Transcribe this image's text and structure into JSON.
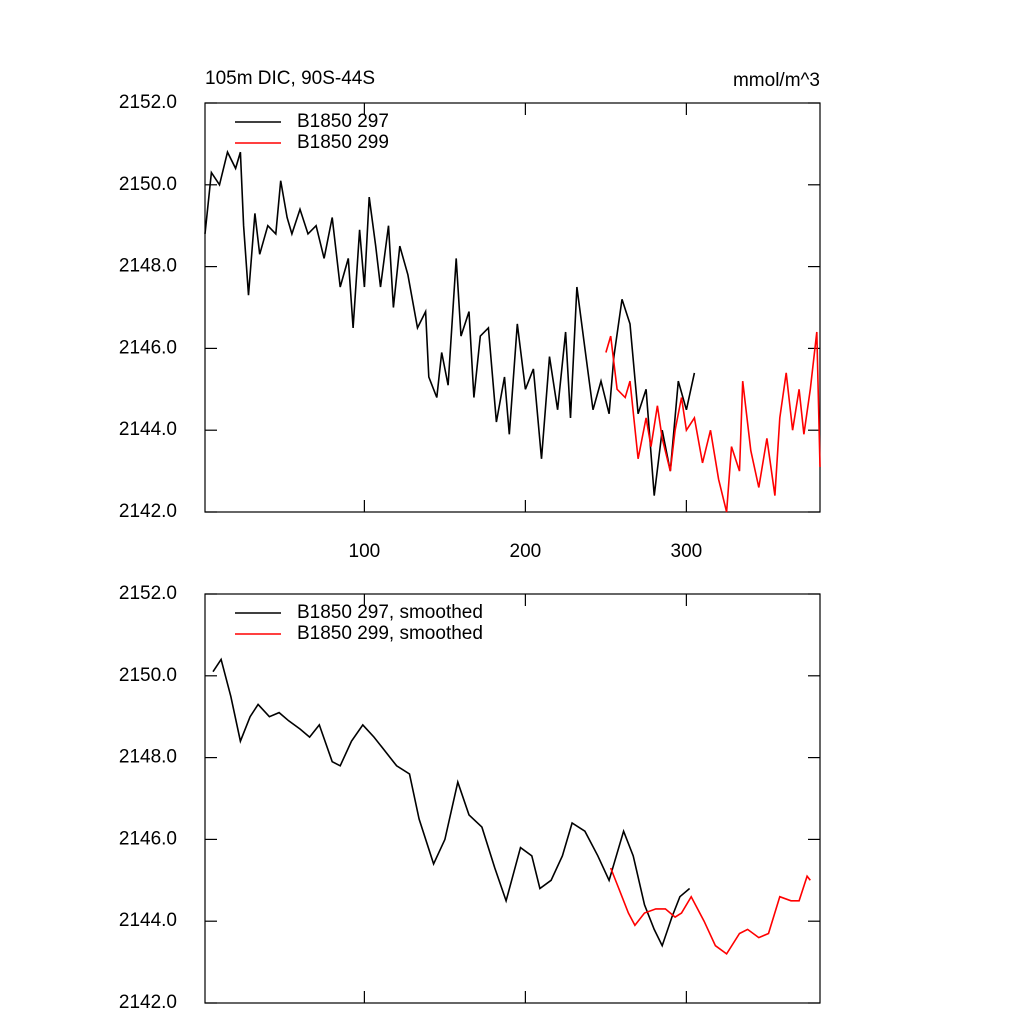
{
  "chart_data": [
    {
      "type": "line",
      "title": "105m DIC, 90S-44S",
      "units_label": "mmol/m^3",
      "xlim": [
        1,
        383
      ],
      "xticks": [
        100,
        200,
        300
      ],
      "xtick_labels": true,
      "ylim": [
        2142,
        2152
      ],
      "yticks": [
        {
          "value": 2142,
          "label": "2142.0"
        },
        {
          "value": 2144,
          "label": "2144.0"
        },
        {
          "value": 2146,
          "label": "2146.0"
        },
        {
          "value": 2148,
          "label": "2148.0"
        },
        {
          "value": 2150,
          "label": "2150.0"
        },
        {
          "value": 2152,
          "label": "2152.0"
        }
      ],
      "series": [
        {
          "name": "B1850 297",
          "color": "#000000",
          "x": [
            1,
            5,
            10,
            15,
            20,
            23,
            25,
            28,
            32,
            35,
            40,
            45,
            48,
            52,
            55,
            60,
            65,
            70,
            75,
            80,
            85,
            90,
            93,
            97,
            100,
            103,
            107,
            110,
            115,
            118,
            122,
            127,
            133,
            138,
            140,
            145,
            148,
            152,
            157,
            160,
            165,
            168,
            172,
            177,
            182,
            187,
            190,
            195,
            200,
            205,
            210,
            215,
            220,
            225,
            228,
            232,
            237,
            242,
            247,
            252,
            255,
            260,
            265,
            270,
            275,
            280,
            285,
            290,
            295,
            300,
            305
          ],
          "values": [
            2148.8,
            2150.3,
            2150.0,
            2150.8,
            2150.4,
            2150.8,
            2149.0,
            2147.3,
            2149.3,
            2148.3,
            2149.0,
            2148.8,
            2150.1,
            2149.2,
            2148.8,
            2149.4,
            2148.8,
            2149.0,
            2148.2,
            2149.2,
            2147.5,
            2148.2,
            2146.5,
            2148.9,
            2147.5,
            2149.7,
            2148.5,
            2147.5,
            2149.0,
            2147.0,
            2148.5,
            2147.8,
            2146.5,
            2146.9,
            2145.3,
            2144.8,
            2145.9,
            2145.1,
            2148.2,
            2146.3,
            2146.9,
            2144.8,
            2146.3,
            2146.5,
            2144.2,
            2145.3,
            2143.9,
            2146.6,
            2145.0,
            2145.5,
            2143.3,
            2145.8,
            2144.5,
            2146.4,
            2144.3,
            2147.5,
            2146.0,
            2144.5,
            2145.2,
            2144.4,
            2145.8,
            2147.2,
            2146.6,
            2144.4,
            2145.0,
            2142.4,
            2144.0,
            2143.0,
            2145.2,
            2144.5,
            2145.4
          ]
        },
        {
          "name": "B1850 299",
          "color": "#ff0000",
          "x": [
            250,
            253,
            257,
            262,
            265,
            270,
            275,
            278,
            282,
            285,
            290,
            293,
            297,
            300,
            305,
            310,
            315,
            320,
            325,
            328,
            333,
            335,
            340,
            345,
            350,
            355,
            358,
            362,
            366,
            370,
            373,
            377,
            381,
            383
          ],
          "values": [
            2145.9,
            2146.3,
            2145.0,
            2144.8,
            2145.2,
            2143.3,
            2144.3,
            2143.6,
            2144.6,
            2143.8,
            2143.0,
            2144.0,
            2144.8,
            2144.0,
            2144.3,
            2143.2,
            2144.0,
            2142.8,
            2142.0,
            2143.6,
            2143.0,
            2145.2,
            2143.5,
            2142.6,
            2143.8,
            2142.4,
            2144.3,
            2145.4,
            2144.0,
            2145.0,
            2143.9,
            2145.0,
            2146.4,
            2143.1
          ]
        }
      ]
    },
    {
      "type": "line",
      "xlim": [
        1,
        383
      ],
      "xticks": [
        100,
        200,
        300
      ],
      "xtick_labels": false,
      "ylim": [
        2142,
        2152
      ],
      "yticks": [
        {
          "value": 2142,
          "label": "2142.0"
        },
        {
          "value": 2144,
          "label": "2144.0"
        },
        {
          "value": 2146,
          "label": "2146.0"
        },
        {
          "value": 2148,
          "label": "2148.0"
        },
        {
          "value": 2150,
          "label": "2150.0"
        },
        {
          "value": 2152,
          "label": "2152.0"
        }
      ],
      "series": [
        {
          "name": "B1850 297, smoothed",
          "color": "#000000",
          "x": [
            6,
            11,
            17,
            23,
            29,
            34,
            41,
            47,
            53,
            60,
            66,
            72,
            80,
            85,
            92,
            99,
            106,
            112,
            120,
            128,
            134,
            143,
            150,
            158,
            165,
            173,
            181,
            188,
            197,
            204,
            209,
            216,
            223,
            229,
            237,
            245,
            252,
            261,
            267,
            274,
            280,
            285,
            291,
            296,
            302
          ],
          "values": [
            2150.1,
            2150.4,
            2149.5,
            2148.4,
            2149.0,
            2149.3,
            2149.0,
            2149.1,
            2148.9,
            2148.7,
            2148.5,
            2148.8,
            2147.9,
            2147.8,
            2148.4,
            2148.8,
            2148.5,
            2148.2,
            2147.8,
            2147.6,
            2146.5,
            2145.4,
            2146.0,
            2147.4,
            2146.6,
            2146.3,
            2145.3,
            2144.5,
            2145.8,
            2145.6,
            2144.8,
            2145.0,
            2145.6,
            2146.4,
            2146.2,
            2145.6,
            2145.0,
            2146.2,
            2145.6,
            2144.4,
            2143.8,
            2143.4,
            2144.1,
            2144.6,
            2144.8
          ]
        },
        {
          "name": "B1850 299, smoothed",
          "color": "#ff0000",
          "x": [
            253,
            258,
            264,
            268,
            274,
            281,
            287,
            293,
            297,
            303,
            311,
            318,
            325,
            333,
            338,
            345,
            351,
            358,
            365,
            370,
            375,
            377
          ],
          "values": [
            2145.3,
            2144.8,
            2144.2,
            2143.9,
            2144.2,
            2144.3,
            2144.3,
            2144.1,
            2144.2,
            2144.6,
            2144.0,
            2143.4,
            2143.2,
            2143.7,
            2143.8,
            2143.6,
            2143.7,
            2144.6,
            2144.5,
            2144.5,
            2145.1,
            2145.0
          ]
        }
      ]
    }
  ]
}
